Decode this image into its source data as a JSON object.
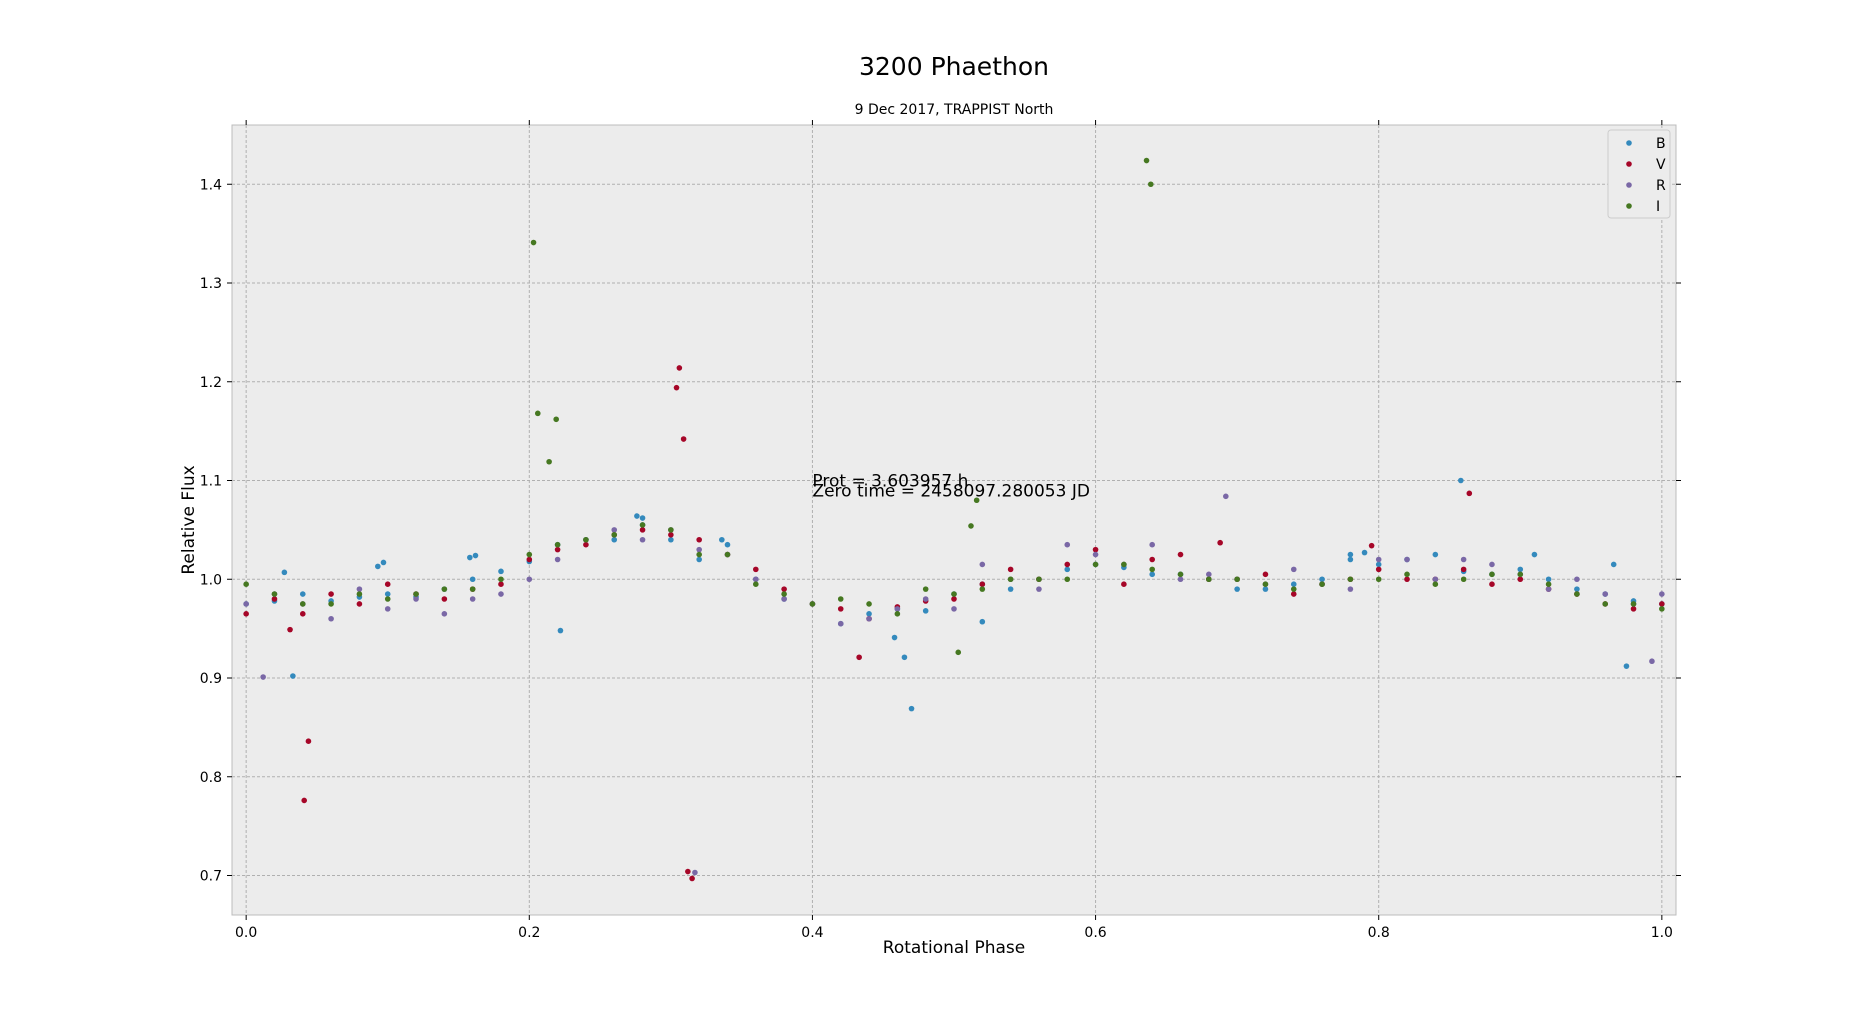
{
  "chart_data": {
    "type": "scatter",
    "title": "3200 Phaethon",
    "subtitle": "9 Dec 2017, TRAPPIST North",
    "xlabel": "Rotational Phase",
    "ylabel": "Relative Flux",
    "xlim": [
      -0.01,
      1.01
    ],
    "ylim": [
      0.66,
      1.46
    ],
    "xticks": [
      0.0,
      0.2,
      0.4,
      0.6,
      0.8,
      1.0
    ],
    "xtick_labels": [
      "0.0",
      "0.2",
      "0.4",
      "0.6",
      "0.8",
      "1.0"
    ],
    "yticks": [
      0.7,
      0.8,
      0.9,
      1.0,
      1.1,
      1.2,
      1.3,
      1.4
    ],
    "ytick_labels": [
      "0.7",
      "0.8",
      "0.9",
      "1.0",
      "1.1",
      "1.2",
      "1.3",
      "1.4"
    ],
    "grid": true,
    "legend_position": "top-right",
    "background": "#ececec",
    "annotations": [
      {
        "text": "Prot = 3.603957 h",
        "x": 0.4,
        "y": 1.1
      },
      {
        "text": "Zero time = 2458097.280053 JD",
        "x": 0.4,
        "y": 1.09
      }
    ],
    "series": [
      {
        "name": "B",
        "color": "#348abd",
        "x": [
          0.0,
          0.02,
          0.04,
          0.06,
          0.08,
          0.1,
          0.12,
          0.14,
          0.16,
          0.18,
          0.2,
          0.22,
          0.24,
          0.26,
          0.28,
          0.3,
          0.32,
          0.34,
          0.36,
          0.38,
          0.4,
          0.42,
          0.44,
          0.46,
          0.48,
          0.5,
          0.52,
          0.54,
          0.56,
          0.58,
          0.6,
          0.62,
          0.64,
          0.66,
          0.68,
          0.7,
          0.72,
          0.74,
          0.76,
          0.78,
          0.8,
          0.82,
          0.84,
          0.86,
          0.88,
          0.9,
          0.92,
          0.94,
          0.96,
          0.98,
          1.0,
          0.027,
          0.033,
          0.093,
          0.097,
          0.158,
          0.162,
          0.222,
          0.276,
          0.28,
          0.336,
          0.458,
          0.465,
          0.47,
          0.52,
          0.78,
          0.79,
          0.858,
          0.91,
          0.966,
          0.975
        ],
        "y": [
          0.975,
          0.978,
          0.985,
          0.978,
          0.982,
          0.985,
          0.982,
          0.99,
          1.0,
          1.008,
          1.018,
          1.035,
          1.04,
          1.04,
          1.055,
          1.04,
          1.02,
          1.035,
          1.0,
          0.98,
          0.975,
          0.955,
          0.965,
          0.97,
          0.968,
          0.985,
          0.995,
          0.99,
          1.0,
          1.01,
          1.015,
          1.012,
          1.005,
          1.005,
          1.0,
          0.99,
          0.99,
          0.995,
          1.0,
          1.02,
          1.015,
          1.02,
          1.025,
          1.008,
          1.005,
          1.01,
          1.0,
          0.99,
          0.985,
          0.978,
          0.975,
          1.007,
          0.902,
          1.013,
          1.017,
          1.022,
          1.024,
          0.948,
          1.064,
          1.062,
          1.04,
          0.941,
          0.921,
          0.869,
          0.957,
          1.025,
          1.027,
          1.1,
          1.025,
          1.015,
          0.912
        ]
      },
      {
        "name": "V",
        "color": "#a60628",
        "x": [
          0.0,
          0.02,
          0.04,
          0.06,
          0.08,
          0.1,
          0.12,
          0.14,
          0.16,
          0.18,
          0.2,
          0.22,
          0.24,
          0.26,
          0.28,
          0.3,
          0.32,
          0.34,
          0.36,
          0.38,
          0.4,
          0.42,
          0.44,
          0.46,
          0.48,
          0.5,
          0.52,
          0.54,
          0.56,
          0.58,
          0.6,
          0.62,
          0.64,
          0.66,
          0.68,
          0.7,
          0.72,
          0.74,
          0.76,
          0.78,
          0.8,
          0.82,
          0.84,
          0.86,
          0.88,
          0.9,
          0.92,
          0.94,
          0.96,
          0.98,
          1.0,
          0.031,
          0.041,
          0.044,
          0.304,
          0.306,
          0.309,
          0.312,
          0.315,
          0.433,
          0.688,
          0.795,
          0.864
        ],
        "y": [
          0.965,
          0.98,
          0.965,
          0.985,
          0.975,
          0.995,
          0.985,
          0.98,
          0.99,
          0.995,
          1.02,
          1.03,
          1.035,
          1.045,
          1.05,
          1.045,
          1.04,
          1.025,
          1.01,
          0.99,
          0.975,
          0.97,
          0.96,
          0.972,
          0.978,
          0.98,
          0.995,
          1.01,
          1.0,
          1.015,
          1.03,
          0.995,
          1.02,
          1.025,
          1.0,
          1.0,
          1.005,
          0.985,
          0.995,
          1.0,
          1.01,
          1.0,
          1.0,
          1.01,
          0.995,
          1.0,
          0.99,
          0.985,
          0.975,
          0.97,
          0.975,
          0.949,
          0.776,
          0.836,
          1.194,
          1.214,
          1.142,
          0.704,
          0.697,
          0.921,
          1.037,
          1.034,
          1.087
        ]
      },
      {
        "name": "R",
        "color": "#7a68a6",
        "x": [
          0.0,
          0.02,
          0.04,
          0.06,
          0.08,
          0.1,
          0.12,
          0.14,
          0.16,
          0.18,
          0.2,
          0.22,
          0.24,
          0.26,
          0.28,
          0.3,
          0.32,
          0.34,
          0.36,
          0.38,
          0.4,
          0.42,
          0.44,
          0.46,
          0.48,
          0.5,
          0.52,
          0.54,
          0.56,
          0.58,
          0.6,
          0.62,
          0.64,
          0.66,
          0.68,
          0.7,
          0.72,
          0.74,
          0.76,
          0.78,
          0.8,
          0.82,
          0.84,
          0.86,
          0.88,
          0.9,
          0.92,
          0.94,
          0.96,
          0.98,
          1.0,
          0.012,
          0.317,
          0.692,
          0.993
        ],
        "y": [
          0.975,
          0.985,
          0.975,
          0.96,
          0.99,
          0.97,
          0.98,
          0.965,
          0.98,
          0.985,
          1.0,
          1.02,
          1.04,
          1.05,
          1.04,
          1.05,
          1.03,
          1.025,
          1.0,
          0.98,
          0.975,
          0.955,
          0.96,
          0.97,
          0.98,
          0.97,
          1.015,
          1.0,
          0.99,
          1.035,
          1.025,
          1.015,
          1.035,
          1.0,
          1.005,
          1.0,
          0.995,
          1.01,
          0.995,
          0.99,
          1.02,
          1.02,
          1.0,
          1.02,
          1.015,
          1.005,
          0.99,
          1.0,
          0.985,
          0.975,
          0.985,
          0.901,
          0.703,
          1.084,
          0.917
        ]
      },
      {
        "name": "I",
        "color": "#467821",
        "x": [
          0.0,
          0.02,
          0.04,
          0.06,
          0.08,
          0.1,
          0.12,
          0.14,
          0.16,
          0.18,
          0.2,
          0.22,
          0.24,
          0.26,
          0.28,
          0.3,
          0.32,
          0.34,
          0.36,
          0.38,
          0.4,
          0.42,
          0.44,
          0.46,
          0.48,
          0.5,
          0.52,
          0.54,
          0.56,
          0.58,
          0.6,
          0.62,
          0.64,
          0.66,
          0.68,
          0.7,
          0.72,
          0.74,
          0.76,
          0.78,
          0.8,
          0.82,
          0.84,
          0.86,
          0.88,
          0.9,
          0.92,
          0.94,
          0.96,
          0.98,
          1.0,
          0.203,
          0.206,
          0.214,
          0.219,
          0.503,
          0.512,
          0.516,
          0.636,
          0.639
        ],
        "y": [
          0.995,
          0.985,
          0.975,
          0.975,
          0.985,
          0.98,
          0.985,
          0.99,
          0.99,
          1.0,
          1.025,
          1.035,
          1.04,
          1.045,
          1.055,
          1.05,
          1.025,
          1.025,
          0.995,
          0.985,
          0.975,
          0.98,
          0.975,
          0.965,
          0.99,
          0.985,
          0.99,
          1.0,
          1.0,
          1.0,
          1.015,
          1.015,
          1.01,
          1.005,
          1.0,
          1.0,
          0.995,
          0.99,
          0.995,
          1.0,
          1.0,
          1.005,
          0.995,
          1.0,
          1.005,
          1.005,
          0.995,
          0.985,
          0.975,
          0.975,
          0.97,
          1.341,
          1.168,
          1.119,
          1.162,
          0.926,
          1.054,
          1.08,
          1.424,
          1.4
        ]
      }
    ]
  }
}
